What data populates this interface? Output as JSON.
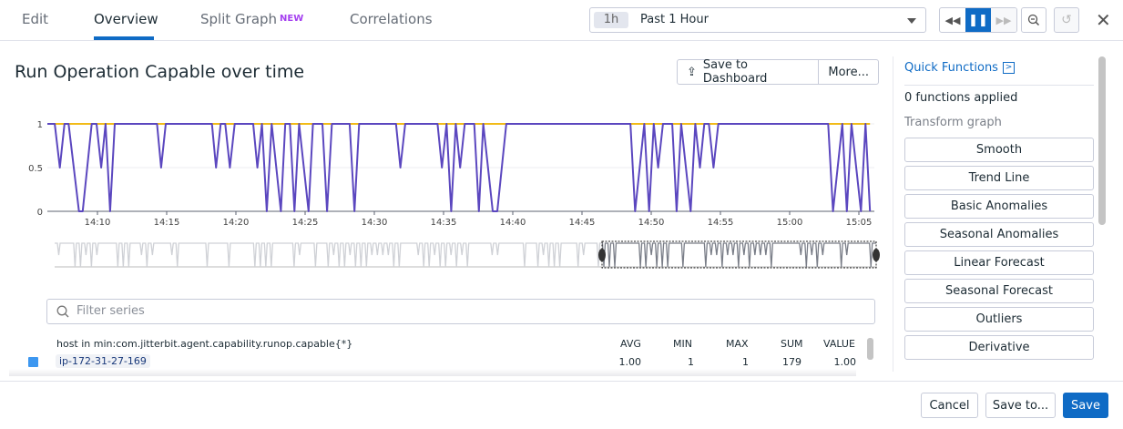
{
  "tabs": [
    {
      "label": "Edit"
    },
    {
      "label": "Overview",
      "active": true
    },
    {
      "label": "Split Graph",
      "badge": "NEW"
    },
    {
      "label": "Correlations"
    }
  ],
  "timeframe": {
    "short": "1h",
    "label": "Past 1 Hour"
  },
  "toolbar": {
    "rewind": "rewind-icon",
    "pause": "pause-icon",
    "forward": "fast-forward-icon",
    "zoom_out": "zoom-out-icon",
    "reset": "reset-icon",
    "close": "close-icon"
  },
  "graph": {
    "title": "Run Operation Capable over time",
    "save_dashboard": "Save to Dashboard",
    "more": "More..."
  },
  "quick_functions": {
    "title": "Quick Functions",
    "applied": "0 functions applied",
    "section": "Transform graph",
    "buttons": [
      "Smooth",
      "Trend Line",
      "Basic Anomalies",
      "Seasonal Anomalies",
      "Linear Forecast",
      "Seasonal Forecast",
      "Outliers",
      "Derivative"
    ]
  },
  "filter": {
    "placeholder": "Filter series",
    "value": ""
  },
  "table": {
    "headers": {
      "name": "host in min:com.jitterbit.agent.capability.runop.capable{*}",
      "avg": "AVG",
      "min": "MIN",
      "max": "MAX",
      "sum": "SUM",
      "value": "VALUE"
    },
    "rows": [
      {
        "host": "ip-172-31-27-169",
        "avg": "1.00",
        "min": "1",
        "max": "1",
        "sum": "179",
        "value": "1.00",
        "color": "#3d97f0"
      }
    ]
  },
  "footer": {
    "cancel": "Cancel",
    "save_to": "Save to...",
    "save": "Save"
  },
  "colors": {
    "accent": "#0f6bc5",
    "series": "#5b47bf",
    "marker": "#f2bb18",
    "new_badge": "#a541f0"
  },
  "chart_data": {
    "type": "line",
    "y_ticks": [
      "0",
      "0.5",
      "1"
    ],
    "ylim": [
      0,
      1
    ],
    "x_ticks": [
      "14:10",
      "14:15",
      "14:20",
      "14:25",
      "14:30",
      "14:35",
      "14:40",
      "14:45",
      "14:50",
      "14:55",
      "15:00",
      "15:05"
    ],
    "xlim": [
      "14:06:23",
      "15:05:48"
    ],
    "grid": true,
    "series": [
      {
        "color": "#5b47bf",
        "points": [
          [
            "14:06:23",
            1
          ],
          [
            "14:06:55",
            1
          ],
          [
            "14:07:17",
            0.5
          ],
          [
            "14:07:37",
            1
          ],
          [
            "14:07:55",
            1
          ],
          [
            "14:08:40",
            0
          ],
          [
            "14:08:56",
            0
          ],
          [
            "14:09:35",
            1
          ],
          [
            "14:09:56",
            1
          ],
          [
            "14:10:16",
            0.5
          ],
          [
            "14:10:35",
            1
          ],
          [
            "14:10:55",
            0
          ],
          [
            "14:11:15",
            1
          ],
          [
            "14:14:18",
            1
          ],
          [
            "14:14:36",
            0.5
          ],
          [
            "14:14:56",
            1
          ],
          [
            "14:18:16",
            1
          ],
          [
            "14:18:34",
            0.5
          ],
          [
            "14:18:54",
            1
          ],
          [
            "14:19:14",
            1
          ],
          [
            "14:19:34",
            0.5
          ],
          [
            "14:19:55",
            1
          ],
          [
            "14:21:15",
            1
          ],
          [
            "14:21:33",
            0.5
          ],
          [
            "14:21:53",
            1
          ],
          [
            "14:22:14",
            0
          ],
          [
            "14:22:35",
            1
          ],
          [
            "14:23:15",
            0
          ],
          [
            "14:23:34",
            1
          ],
          [
            "14:23:54",
            1
          ],
          [
            "14:24:14",
            0
          ],
          [
            "14:24:34",
            1
          ],
          [
            "14:25:15",
            0
          ],
          [
            "14:25:34",
            1
          ],
          [
            "14:26:15",
            1
          ],
          [
            "14:26:35",
            0
          ],
          [
            "14:26:56",
            1
          ],
          [
            "14:28:13",
            1
          ],
          [
            "14:28:34",
            0
          ],
          [
            "14:28:54",
            1
          ],
          [
            "14:31:34",
            1
          ],
          [
            "14:31:53",
            0.5
          ],
          [
            "14:32:14",
            1
          ],
          [
            "14:34:34",
            1
          ],
          [
            "14:34:53",
            0.5
          ],
          [
            "14:35:13",
            1
          ],
          [
            "14:35:33",
            0
          ],
          [
            "14:35:53",
            1
          ],
          [
            "14:36:12",
            0.5
          ],
          [
            "14:36:32",
            1
          ],
          [
            "14:37:13",
            1
          ],
          [
            "14:37:33",
            0
          ],
          [
            "14:37:52",
            1
          ],
          [
            "14:38:33",
            0
          ],
          [
            "14:38:53",
            0
          ],
          [
            "14:39:32",
            1
          ],
          [
            "14:48:30",
            1
          ],
          [
            "14:48:50",
            0
          ],
          [
            "14:49:30",
            1
          ],
          [
            "14:49:51",
            0
          ],
          [
            "14:50:11",
            1
          ],
          [
            "14:50:30",
            0.5
          ],
          [
            "14:50:51",
            1
          ],
          [
            "14:51:31",
            1
          ],
          [
            "14:51:50",
            0
          ],
          [
            "14:52:10",
            1
          ],
          [
            "14:52:51",
            0
          ],
          [
            "14:53:11",
            1
          ],
          [
            "14:53:31",
            0.5
          ],
          [
            "14:53:50",
            1
          ],
          [
            "14:54:10",
            1
          ],
          [
            "14:54:30",
            0.5
          ],
          [
            "14:54:51",
            1
          ],
          [
            "15:02:47",
            1
          ],
          [
            "15:03:08",
            0
          ],
          [
            "15:03:48",
            1
          ],
          [
            "15:04:08",
            0
          ],
          [
            "15:04:28",
            1
          ],
          [
            "15:05:09",
            0
          ],
          [
            "15:05:29",
            1
          ],
          [
            "15:05:48",
            0
          ]
        ]
      },
      {
        "color": "#f2bb18",
        "points": [
          [
            "14:06:23",
            1
          ],
          [
            "15:05:48",
            1
          ]
        ]
      }
    ]
  }
}
